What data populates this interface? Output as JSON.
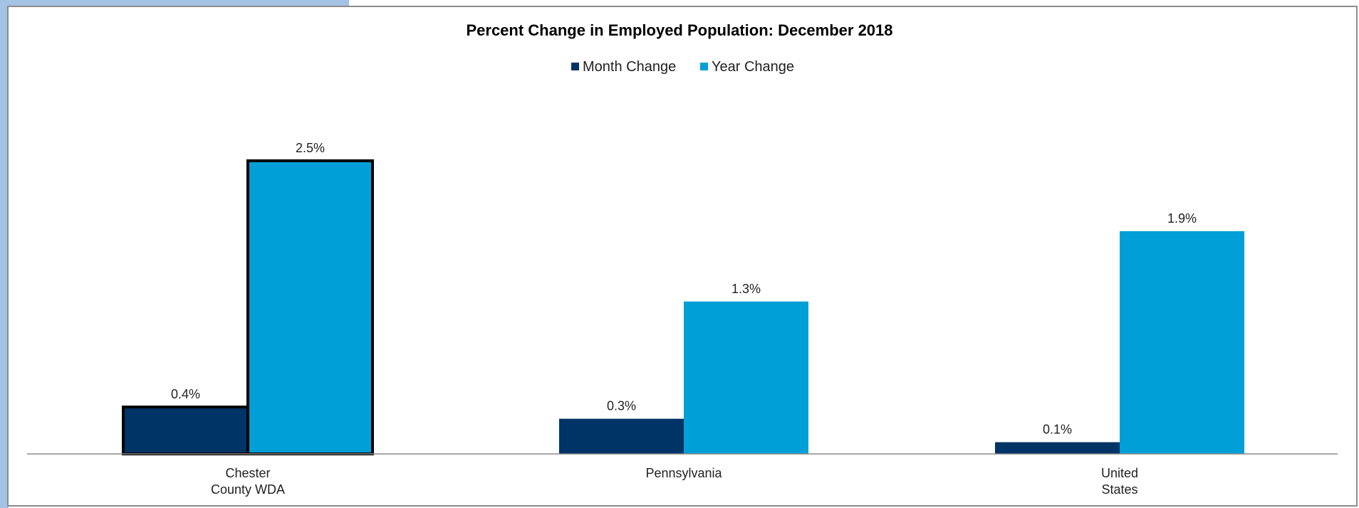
{
  "chart_data": {
    "type": "bar",
    "title": "Percent Change in Employed Population: December 2018",
    "categories": [
      [
        "Chester",
        "County WDA"
      ],
      [
        "Pennsylvania"
      ],
      [
        "United",
        "States"
      ]
    ],
    "series": [
      {
        "name": "Month Change",
        "values": [
          0.4,
          0.3,
          0.1
        ],
        "labels": [
          "0.4%",
          "0.3%",
          "0.1%"
        ],
        "color": "#003366"
      },
      {
        "name": "Year Change",
        "values": [
          2.5,
          1.3,
          1.9
        ],
        "labels": [
          "2.5%",
          "1.3%",
          "1.9%"
        ],
        "color": "#009fd7"
      }
    ],
    "ylim": [
      0,
      2.5
    ],
    "grid": false,
    "legend_position": "top-center",
    "highlighted_category": 0,
    "xlabel": "",
    "ylabel": ""
  }
}
